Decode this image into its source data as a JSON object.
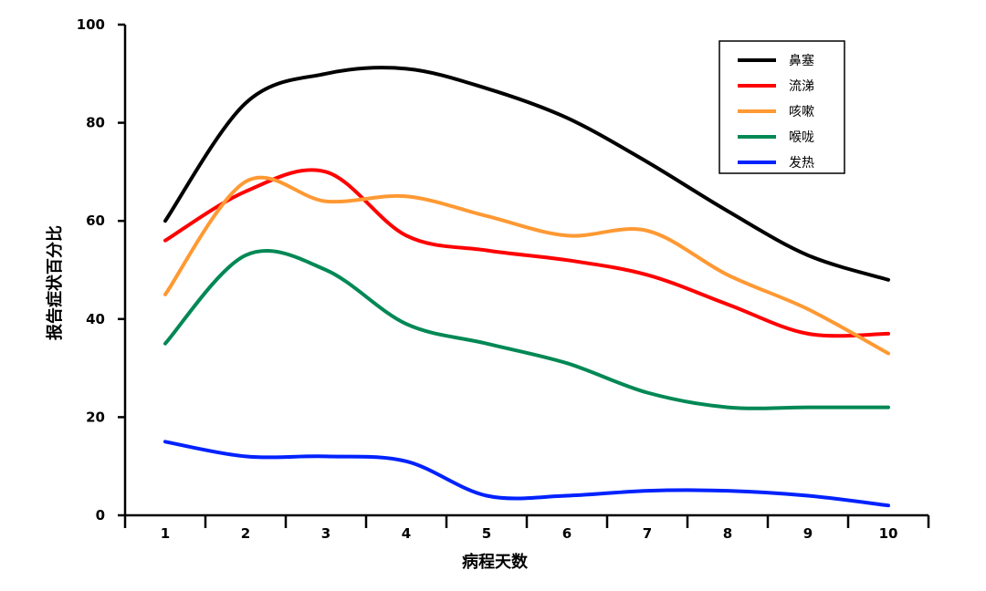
{
  "chart_data": {
    "type": "line",
    "title": "",
    "xlabel": "病程天数",
    "ylabel": "报告症状百分比",
    "xlim": [
      0.5,
      10.5
    ],
    "ylim": [
      0,
      100
    ],
    "x_ticks": [
      1,
      2,
      3,
      4,
      5,
      6,
      7,
      8,
      9,
      10
    ],
    "y_ticks": [
      0,
      20,
      40,
      60,
      80,
      100
    ],
    "grid": false,
    "legend_position": "top-right",
    "series": [
      {
        "name": "鼻塞",
        "color": "#000000",
        "x": [
          1,
          2,
          3,
          4,
          5,
          6,
          7,
          8,
          9,
          10
        ],
        "values": [
          60,
          84,
          90,
          91,
          87,
          81,
          72,
          62,
          53,
          48
        ]
      },
      {
        "name": "流涕",
        "color": "#ff0000",
        "x": [
          1,
          2,
          3,
          4,
          5,
          6,
          7,
          8,
          9,
          10
        ],
        "values": [
          56,
          66,
          70,
          57,
          54,
          52,
          49,
          43,
          37,
          37
        ]
      },
      {
        "name": "咳嗽",
        "color": "#ff9933",
        "x": [
          1,
          2,
          3,
          4,
          5,
          6,
          7,
          8,
          9,
          10
        ],
        "values": [
          45,
          68,
          64,
          65,
          61,
          57,
          58,
          49,
          42,
          33
        ]
      },
      {
        "name": "喉咙",
        "color": "#008855",
        "x": [
          1,
          2,
          3,
          4,
          5,
          6,
          7,
          8,
          9,
          10
        ],
        "values": [
          35,
          53,
          50,
          39,
          35,
          31,
          25,
          22,
          22,
          22
        ]
      },
      {
        "name": "发热",
        "color": "#0022ff",
        "x": [
          1,
          2,
          3,
          4,
          5,
          6,
          7,
          8,
          9,
          10
        ],
        "values": [
          15,
          12,
          12,
          11,
          4,
          4,
          5,
          5,
          4,
          2
        ]
      }
    ]
  }
}
